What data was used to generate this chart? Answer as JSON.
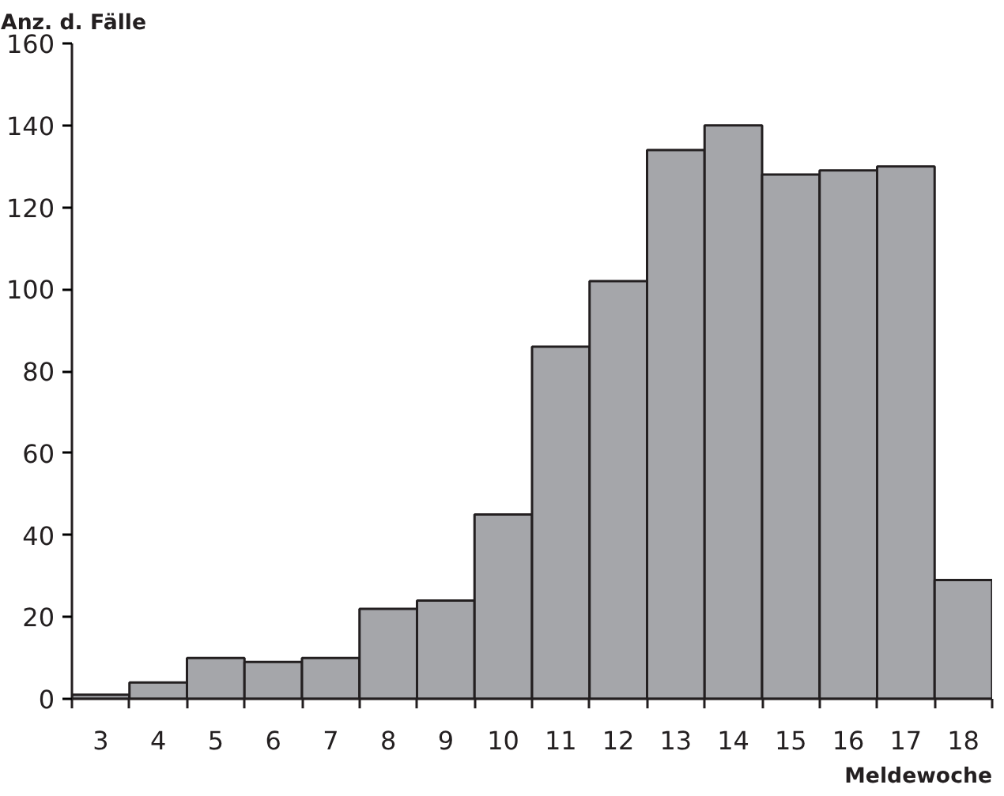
{
  "chart_data": {
    "type": "bar",
    "ylabel": "Anz. d. Fälle",
    "xlabel": "Meldewoche",
    "categories": [
      "3",
      "4",
      "5",
      "6",
      "7",
      "8",
      "9",
      "10",
      "11",
      "12",
      "13",
      "14",
      "15",
      "16",
      "17",
      "18"
    ],
    "values": [
      1,
      4,
      10,
      9,
      10,
      22,
      24,
      45,
      86,
      102,
      134,
      140,
      128,
      129,
      130,
      29
    ],
    "color": "#a5a6aa",
    "ylim": [
      0,
      160
    ],
    "yticks": [
      0,
      20,
      40,
      60,
      80,
      100,
      120,
      140,
      160
    ],
    "grid": false
  }
}
